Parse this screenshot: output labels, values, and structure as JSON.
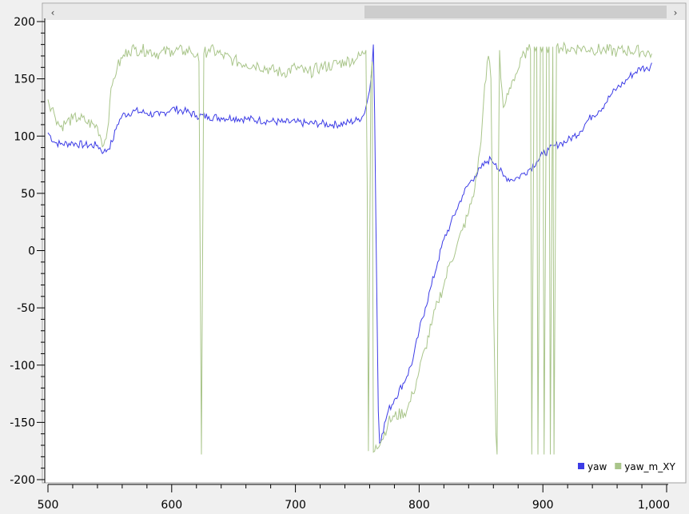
{
  "colors": {
    "yaw": "#3c3ce6",
    "yaw_m_XY": "#a9c58a",
    "plot_bg": "#ffffff",
    "window_bg": "#f0f0f0",
    "scrollbar_track": "#e9e9e9",
    "scrollbar_thumb": "#cdcdcd"
  },
  "scrollbar": {
    "left_icon": "chevron-left-icon",
    "right_icon": "chevron-right-icon",
    "left_glyph": "‹",
    "right_glyph": "›",
    "thumb_start_fraction": 0.5,
    "thumb_end_fraction": 1.0
  },
  "chart_data": {
    "type": "line",
    "title": "",
    "xlabel": "",
    "ylabel": "",
    "xlim": [
      500,
      1000
    ],
    "ylim": [
      -200,
      200
    ],
    "x_ticks": [
      500,
      600,
      700,
      800,
      900,
      1000
    ],
    "x_tick_labels": [
      "500",
      "600",
      "700",
      "800",
      "900",
      "1,000"
    ],
    "y_ticks": [
      200,
      150,
      100,
      50,
      0,
      -50,
      -100,
      -150,
      -200
    ],
    "y_tick_labels": [
      "200",
      "150",
      "100",
      "50",
      "0",
      "-50",
      "-100",
      "-150",
      "-200"
    ],
    "grid": false,
    "legend_position": "bottom-right",
    "series": [
      {
        "name": "yaw",
        "color": "#3c3ce6",
        "points": [
          [
            500,
            103
          ],
          [
            505,
            95
          ],
          [
            510,
            93
          ],
          [
            520,
            94
          ],
          [
            530,
            92
          ],
          [
            540,
            92
          ],
          [
            545,
            86
          ],
          [
            548,
            88
          ],
          [
            552,
            95
          ],
          [
            556,
            110
          ],
          [
            560,
            118
          ],
          [
            570,
            122
          ],
          [
            580,
            120
          ],
          [
            590,
            118
          ],
          [
            600,
            124
          ],
          [
            610,
            122
          ],
          [
            620,
            118
          ],
          [
            630,
            117
          ],
          [
            640,
            116
          ],
          [
            650,
            116
          ],
          [
            660,
            115
          ],
          [
            670,
            114
          ],
          [
            680,
            113
          ],
          [
            690,
            112
          ],
          [
            700,
            112
          ],
          [
            710,
            111
          ],
          [
            720,
            111
          ],
          [
            730,
            110
          ],
          [
            740,
            111
          ],
          [
            750,
            114
          ],
          [
            755,
            118
          ],
          [
            758,
            130
          ],
          [
            760,
            140
          ],
          [
            762,
            162
          ],
          [
            763,
            180
          ],
          [
            764,
            120
          ],
          [
            765,
            30
          ],
          [
            766,
            -60
          ],
          [
            767,
            -140
          ],
          [
            768,
            -168
          ],
          [
            770,
            -160
          ],
          [
            775,
            -140
          ],
          [
            780,
            -130
          ],
          [
            790,
            -110
          ],
          [
            795,
            -95
          ],
          [
            800,
            -70
          ],
          [
            805,
            -50
          ],
          [
            810,
            -30
          ],
          [
            815,
            -10
          ],
          [
            820,
            10
          ],
          [
            825,
            22
          ],
          [
            830,
            35
          ],
          [
            835,
            48
          ],
          [
            840,
            58
          ],
          [
            845,
            65
          ],
          [
            850,
            72
          ],
          [
            855,
            78
          ],
          [
            858,
            80
          ],
          [
            862,
            76
          ],
          [
            868,
            65
          ],
          [
            875,
            62
          ],
          [
            880,
            64
          ],
          [
            885,
            68
          ],
          [
            890,
            72
          ],
          [
            895,
            78
          ],
          [
            900,
            84
          ],
          [
            905,
            88
          ],
          [
            910,
            92
          ],
          [
            915,
            94
          ],
          [
            920,
            96
          ],
          [
            925,
            100
          ],
          [
            930,
            104
          ],
          [
            935,
            112
          ],
          [
            940,
            118
          ],
          [
            945,
            122
          ],
          [
            950,
            128
          ],
          [
            955,
            136
          ],
          [
            960,
            142
          ],
          [
            965,
            146
          ],
          [
            970,
            152
          ],
          [
            975,
            156
          ],
          [
            980,
            160
          ],
          [
            985,
            158
          ],
          [
            988,
            164
          ]
        ]
      },
      {
        "name": "yaw_m_XY",
        "color": "#a9c58a",
        "points": [
          [
            500,
            132
          ],
          [
            505,
            120
          ],
          [
            510,
            108
          ],
          [
            515,
            112
          ],
          [
            520,
            115
          ],
          [
            525,
            116
          ],
          [
            530,
            113
          ],
          [
            540,
            108
          ],
          [
            545,
            92
          ],
          [
            548,
            105
          ],
          [
            550,
            130
          ],
          [
            553,
            150
          ],
          [
            556,
            160
          ],
          [
            560,
            168
          ],
          [
            565,
            175
          ],
          [
            570,
            176
          ],
          [
            575,
            175
          ],
          [
            580,
            175
          ],
          [
            590,
            172
          ],
          [
            600,
            175
          ],
          [
            610,
            174
          ],
          [
            615,
            175
          ],
          [
            620,
            170
          ],
          [
            622,
            165
          ],
          [
            623,
            0
          ],
          [
            624,
            -178
          ],
          [
            625,
            0
          ],
          [
            626,
            172
          ],
          [
            630,
            176
          ],
          [
            640,
            171
          ],
          [
            650,
            166
          ],
          [
            660,
            163
          ],
          [
            670,
            162
          ],
          [
            680,
            158
          ],
          [
            690,
            155
          ],
          [
            700,
            160
          ],
          [
            710,
            155
          ],
          [
            720,
            160
          ],
          [
            730,
            162
          ],
          [
            740,
            165
          ],
          [
            750,
            168
          ],
          [
            755,
            172
          ],
          [
            757,
            175
          ],
          [
            758,
            60
          ],
          [
            759,
            -175
          ],
          [
            760,
            0
          ],
          [
            761,
            150
          ],
          [
            762,
            165
          ],
          [
            763,
            -176
          ],
          [
            765,
            -170
          ],
          [
            770,
            -165
          ],
          [
            775,
            -150
          ],
          [
            780,
            -145
          ],
          [
            790,
            -140
          ],
          [
            795,
            -125
          ],
          [
            800,
            -105
          ],
          [
            805,
            -85
          ],
          [
            810,
            -65
          ],
          [
            815,
            -45
          ],
          [
            820,
            -30
          ],
          [
            825,
            -10
          ],
          [
            830,
            2
          ],
          [
            835,
            18
          ],
          [
            840,
            33
          ],
          [
            845,
            55
          ],
          [
            850,
            95
          ],
          [
            853,
            145
          ],
          [
            856,
            170
          ],
          [
            858,
            150
          ],
          [
            860,
            -40
          ],
          [
            862,
            -160
          ],
          [
            863,
            -178
          ],
          [
            864,
            60
          ],
          [
            865,
            175
          ],
          [
            866,
            150
          ],
          [
            867,
            140
          ],
          [
            868,
            125
          ],
          [
            870,
            130
          ],
          [
            875,
            148
          ],
          [
            880,
            158
          ],
          [
            885,
            172
          ],
          [
            888,
            175
          ],
          [
            890,
            175
          ],
          [
            891,
            -178
          ],
          [
            892,
            0
          ],
          [
            893,
            178
          ],
          [
            895,
            178
          ],
          [
            896,
            -178
          ],
          [
            897,
            0
          ],
          [
            898,
            178
          ],
          [
            900,
            178
          ],
          [
            901,
            -178
          ],
          [
            902,
            0
          ],
          [
            903,
            178
          ],
          [
            905,
            178
          ],
          [
            906,
            -178
          ],
          [
            907,
            0
          ],
          [
            908,
            178
          ],
          [
            909,
            -178
          ],
          [
            910,
            0
          ],
          [
            911,
            178
          ],
          [
            915,
            177
          ],
          [
            920,
            176
          ],
          [
            930,
            177
          ],
          [
            940,
            176
          ],
          [
            950,
            175
          ],
          [
            960,
            174
          ],
          [
            970,
            175
          ],
          [
            980,
            174
          ],
          [
            988,
            172
          ]
        ]
      }
    ]
  }
}
